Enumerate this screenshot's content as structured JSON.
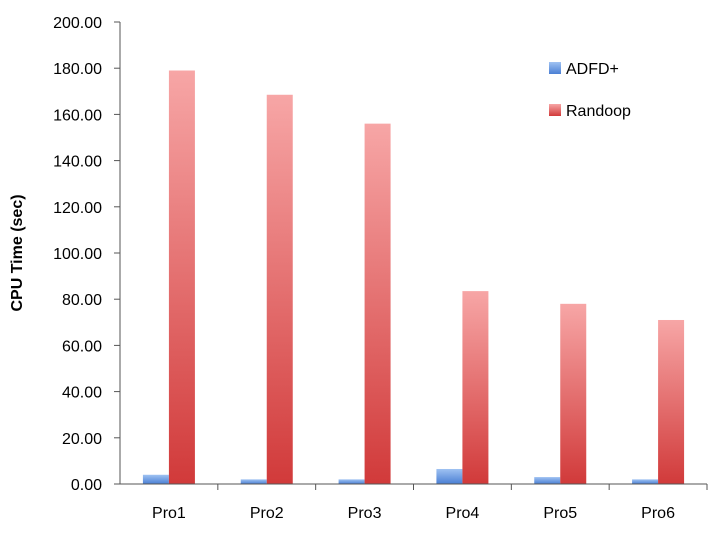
{
  "chart_data": {
    "type": "bar",
    "categories": [
      "Pro1",
      "Pro2",
      "Pro3",
      "Pro4",
      "Pro5",
      "Pro6"
    ],
    "series": [
      {
        "name": "ADFD+",
        "values": [
          4.0,
          2.0,
          2.0,
          6.5,
          3.0,
          2.0
        ],
        "color": "#4a7fd4",
        "color_light": "#9fc2f2"
      },
      {
        "name": "Randoop",
        "values": [
          179.0,
          168.5,
          156.0,
          83.5,
          78.0,
          71.0
        ],
        "color": "#d13a3a",
        "color_light": "#f7a6a6"
      }
    ],
    "title": "",
    "xlabel": "",
    "ylabel": "CPU Time (sec)",
    "ylim": [
      0,
      200
    ],
    "yticks": [
      "0.00",
      "20.00",
      "40.00",
      "60.00",
      "80.00",
      "100.00",
      "120.00",
      "140.00",
      "160.00",
      "180.00",
      "200.00"
    ],
    "grid": false,
    "legend_position": "top-right"
  }
}
